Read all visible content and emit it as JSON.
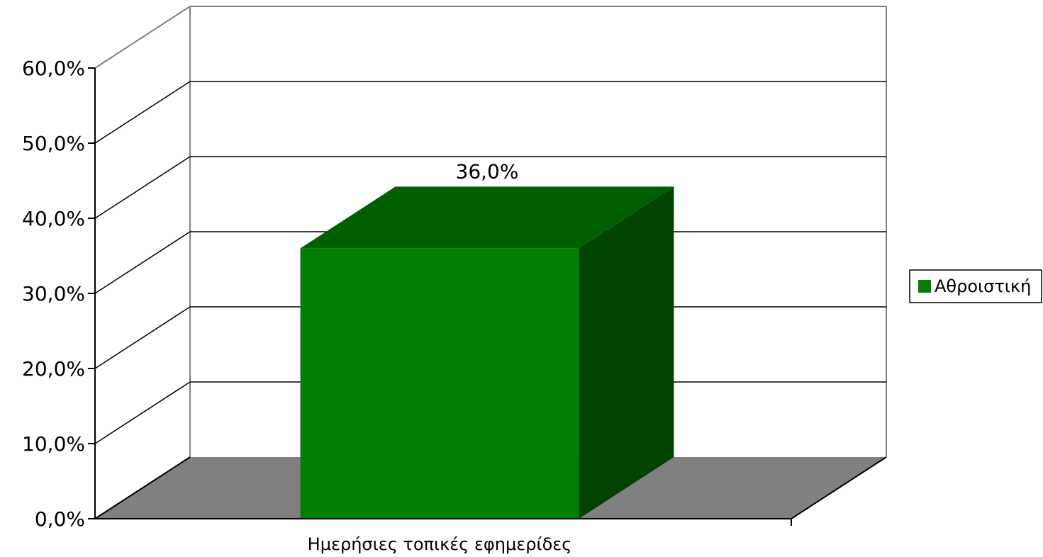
{
  "chart_data": {
    "type": "bar",
    "categories": [
      "Ημερήσιες τοπικές εφημερίδες"
    ],
    "series": [
      {
        "name": "Αθροιστική",
        "values": [
          36.0
        ],
        "value_labels": [
          "36,0%"
        ]
      }
    ],
    "ylim": [
      0,
      60
    ],
    "yticks": [
      0,
      10,
      20,
      30,
      40,
      50,
      60
    ],
    "ytick_labels": [
      "0,0%",
      "10,0%",
      "20,0%",
      "30,0%",
      "40,0%",
      "50,0%",
      "60,0%"
    ],
    "grid": true,
    "legend_position": "right",
    "style": "3d",
    "colors": {
      "bar_front": "#008000",
      "bar_top": "#006000",
      "bar_side": "#004400",
      "floor": "#808080",
      "grid": "#000000",
      "wall_edge": "#808080"
    }
  }
}
